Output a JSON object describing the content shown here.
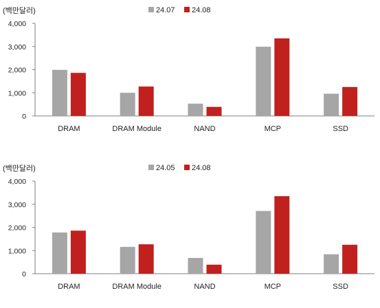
{
  "colors": {
    "series_a": "#a6a6a6",
    "series_b": "#c0211f",
    "axis": "#7f7f7f"
  },
  "chart_data": [
    {
      "type": "bar",
      "unit_label": "(백만달러)",
      "categories": [
        "DRAM",
        "DRAM Module",
        "NAND",
        "MCP",
        "SSD"
      ],
      "yticks": [
        "4,000",
        "3,000",
        "2,000",
        "1,000",
        "0"
      ],
      "ylim": [
        0,
        4000
      ],
      "grid": false,
      "legend_position": "top-center",
      "series": [
        {
          "name": "24.07",
          "values": [
            1990,
            1000,
            530,
            2990,
            960
          ]
        },
        {
          "name": "24.08",
          "values": [
            1860,
            1270,
            390,
            3350,
            1250
          ]
        }
      ]
    },
    {
      "type": "bar",
      "unit_label": "(백만달러)",
      "categories": [
        "DRAM",
        "DRAM Module",
        "NAND",
        "MCP",
        "SSD"
      ],
      "yticks": [
        "4,000",
        "3,000",
        "2,000",
        "1,000",
        "0"
      ],
      "ylim": [
        0,
        4000
      ],
      "grid": false,
      "legend_position": "top-center",
      "series": [
        {
          "name": "24.05",
          "values": [
            1780,
            1160,
            680,
            2710,
            840
          ]
        },
        {
          "name": "24.08",
          "values": [
            1860,
            1270,
            390,
            3350,
            1250
          ]
        }
      ]
    }
  ]
}
